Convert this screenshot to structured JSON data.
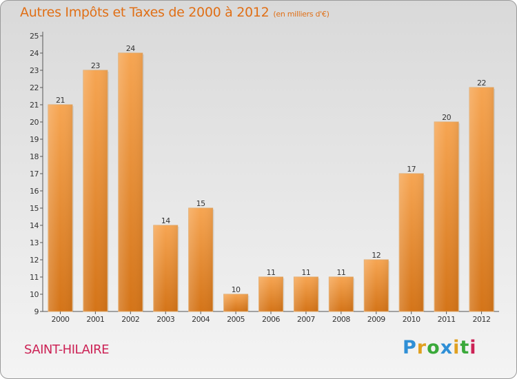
{
  "header": {
    "title": "Autres Impôts et Taxes de 2000 à 2012",
    "subtitle": "(en milliers d'€)"
  },
  "footer": {
    "town": "SAINT-HILAIRE",
    "logo": "Proxiti"
  },
  "colors": {
    "title": "#e06f16",
    "bar_top": "#f6a552",
    "bar_bottom": "#d47418",
    "town": "#cc2255"
  },
  "chart_data": {
    "type": "bar",
    "title": "Autres Impôts et Taxes de 2000 à 2012",
    "subtitle": "(en milliers d'€)",
    "categories": [
      "2000",
      "2001",
      "2002",
      "2003",
      "2004",
      "2005",
      "2006",
      "2007",
      "2008",
      "2009",
      "2010",
      "2011",
      "2012"
    ],
    "values": [
      21,
      23,
      24,
      14,
      15,
      10,
      11,
      11,
      11,
      12,
      17,
      20,
      22
    ],
    "ylim": [
      9,
      25
    ],
    "yticks": [
      9,
      10,
      11,
      12,
      13,
      14,
      15,
      16,
      17,
      18,
      19,
      20,
      21,
      22,
      23,
      24,
      25
    ],
    "grid": false,
    "data_labels": true
  }
}
